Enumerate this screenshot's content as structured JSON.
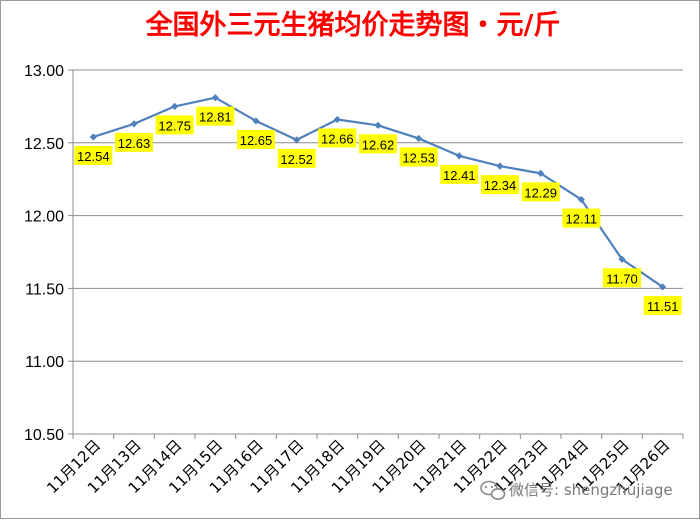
{
  "chart_data": {
    "type": "line",
    "title": "全国外三元生猪均价走势图・元/斤",
    "categories": [
      "11月12日",
      "11月13日",
      "11月14日",
      "11月15日",
      "11月16日",
      "11月17日",
      "11月18日",
      "11月19日",
      "11月20日",
      "11月21日",
      "11月22日",
      "11月23日",
      "11月24日",
      "11月25日",
      "11月26日"
    ],
    "series": [
      {
        "values": [
          12.54,
          12.63,
          12.75,
          12.81,
          12.65,
          12.52,
          12.66,
          12.62,
          12.53,
          12.41,
          12.34,
          12.29,
          12.11,
          11.7,
          11.51
        ]
      }
    ],
    "data_labels": [
      "12.54",
      "12.63",
      "12.75",
      "12.81",
      "12.65",
      "12.52",
      "12.66",
      "12.62",
      "12.53",
      "12.41",
      "12.34",
      "12.29",
      "12.11",
      "11.70",
      "11.51"
    ],
    "y_ticks": [
      "10.50",
      "11.00",
      "11.50",
      "12.00",
      "12.50",
      "13.00"
    ],
    "ylim": [
      10.5,
      13.0
    ],
    "grid": true,
    "line_color": "#4f81bd",
    "label_bg_color": "#ffff00"
  },
  "watermark": {
    "icon": "wechat-icon",
    "text": "微信号: shengzhujiage"
  }
}
